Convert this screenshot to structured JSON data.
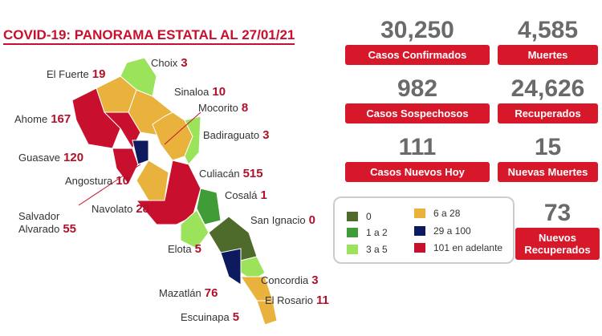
{
  "header": {
    "title": "COVID-19: PANORAMA ESTATAL AL 27/01/21"
  },
  "stats": [
    {
      "value": "30,250",
      "label": "Casos Confirmados"
    },
    {
      "value": "4,585",
      "label": "Muertes"
    },
    {
      "value": "982",
      "label": "Casos Sospechosos"
    },
    {
      "value": "24,626",
      "label": "Recuperados"
    },
    {
      "value": "111",
      "label": "Casos Nuevos Hoy"
    },
    {
      "value": "15",
      "label": "Nuevas Muertes"
    },
    {
      "value": "73",
      "label": "Nuevos Recuperados"
    }
  ],
  "municipalities": [
    {
      "name": "Choix",
      "count": 3
    },
    {
      "name": "El Fuerte",
      "count": 19
    },
    {
      "name": "Sinaloa",
      "count": 10
    },
    {
      "name": "Mocorito",
      "count": 8
    },
    {
      "name": "Ahome",
      "count": 167
    },
    {
      "name": "Badiraguato",
      "count": 3
    },
    {
      "name": "Guasave",
      "count": 120
    },
    {
      "name": "Culiacán",
      "count": 515
    },
    {
      "name": "Angostura",
      "count": 10
    },
    {
      "name": "Cosalá",
      "count": 1
    },
    {
      "name": "Salvador Alvarado",
      "count": 55
    },
    {
      "name": "Navolato",
      "count": 28
    },
    {
      "name": "San Ignacio",
      "count": 0
    },
    {
      "name": "Elota",
      "count": 5
    },
    {
      "name": "Concordia",
      "count": 3
    },
    {
      "name": "El Rosario",
      "count": 11
    },
    {
      "name": "Mazatlán",
      "count": 76
    },
    {
      "name": "Escuinapa",
      "count": 5
    }
  ],
  "legend": [
    {
      "label": "0",
      "color": "#4f6b2b"
    },
    {
      "label": "6 a 28",
      "color": "#e8b23c"
    },
    {
      "label": "1 a 2",
      "color": "#3f9c37"
    },
    {
      "label": "29 a 100",
      "color": "#0d1a5e"
    },
    {
      "label": "3 a 5",
      "color": "#9ce35c"
    },
    {
      "label": "101 en adelante",
      "color": "#c8102e"
    }
  ]
}
